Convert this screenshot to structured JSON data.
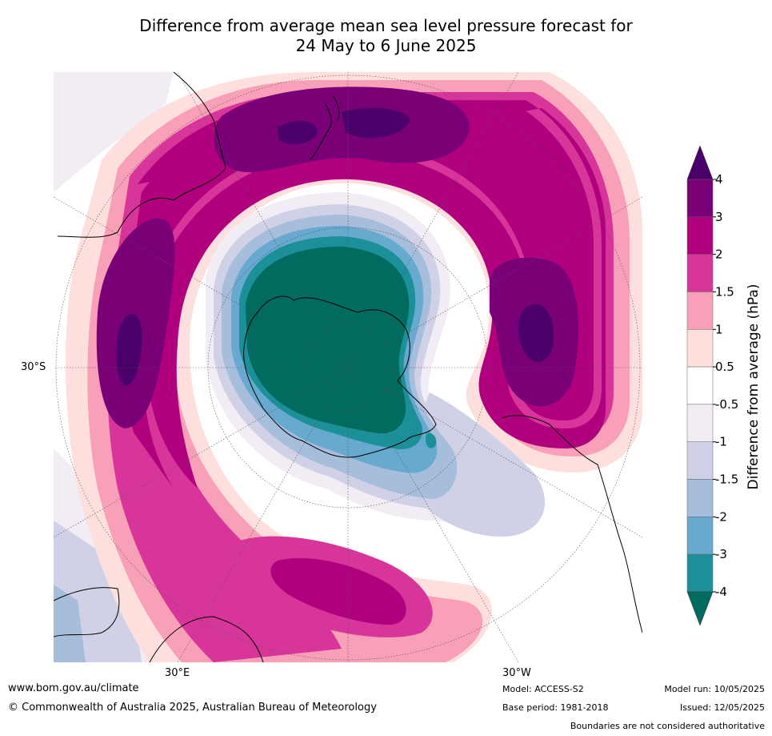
{
  "title": {
    "line1": "Difference from average mean sea level pressure forecast for",
    "line2": "24 May to 6 June 2025"
  },
  "axis_labels": {
    "lat_30s": "30°S",
    "lon_30e": "30°E",
    "lon_30w": "30°W"
  },
  "colorbar": {
    "label": "Difference from average (hPa)",
    "ticks": [
      "4",
      "3",
      "2",
      "1.5",
      "1",
      "0.5",
      "-0.5",
      "-1",
      "-1.5",
      "-2",
      "-3",
      "-4"
    ],
    "colors": [
      "#4a0068",
      "#7a0078",
      "#b0007e",
      "#d8359a",
      "#f8a0b8",
      "#fde0dd",
      "#ffffff",
      "#f2ecf4",
      "#d0d1e6",
      "#a6bddb",
      "#67a9cf",
      "#1c9099",
      "#006b5e"
    ]
  },
  "footer": {
    "website": "www.bom.gov.au/climate",
    "copyright": "© Commonwealth of Australia 2025, Australian Bureau of Meteorology",
    "model": "Model: ACCESS-S2",
    "base_period": "Base period: 1981-2018",
    "model_run": "Model run: 10/05/2025",
    "issued": "Issued: 12/05/2025",
    "disclaimer": "Boundaries are not considered authoritative"
  }
}
